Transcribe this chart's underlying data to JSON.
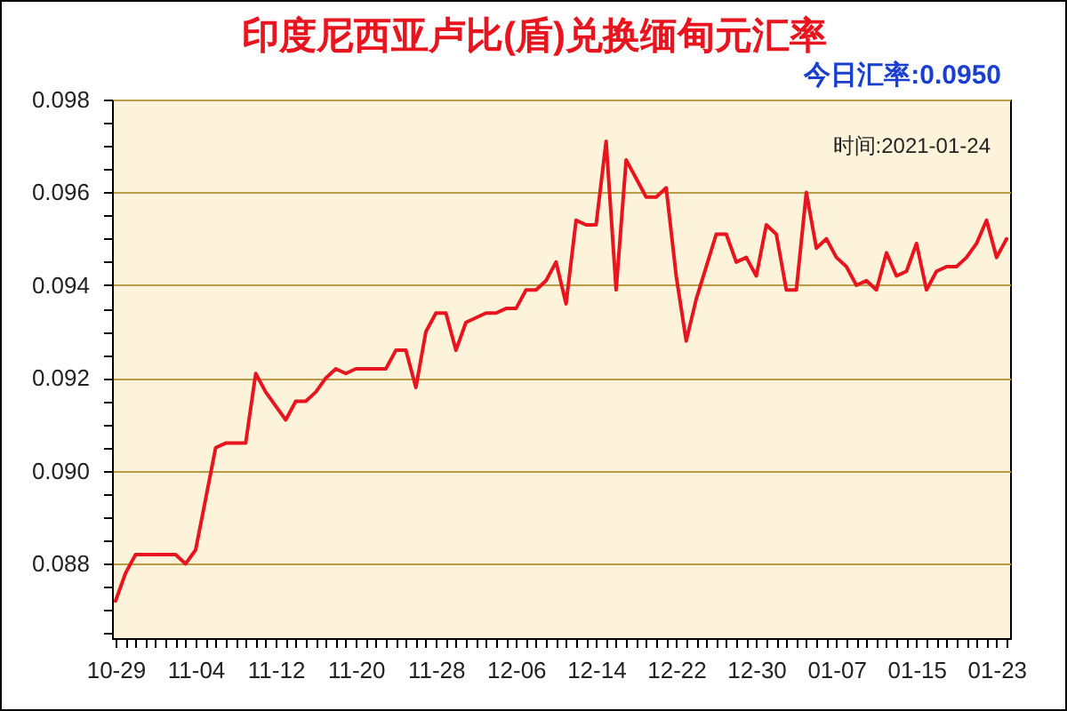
{
  "chart_data": {
    "type": "line",
    "title": "印度尼西亚卢比(盾)兑换缅甸元汇率",
    "annotations": [
      "今日汇率:0.0950",
      "时间:2021-01-24"
    ],
    "categories": [
      "10-29",
      null,
      null,
      null,
      null,
      null,
      null,
      null,
      "11-04",
      null,
      null,
      null,
      null,
      null,
      null,
      null,
      "11-12",
      null,
      null,
      null,
      null,
      null,
      null,
      null,
      "11-20",
      null,
      null,
      null,
      null,
      null,
      null,
      null,
      "11-28",
      null,
      null,
      null,
      null,
      null,
      null,
      null,
      "12-06",
      null,
      null,
      null,
      null,
      null,
      null,
      null,
      "12-14",
      null,
      null,
      null,
      null,
      null,
      null,
      null,
      "12-22",
      null,
      null,
      null,
      null,
      null,
      null,
      null,
      "12-30",
      null,
      null,
      null,
      null,
      null,
      null,
      null,
      "01-07",
      null,
      null,
      null,
      null,
      null,
      null,
      null,
      "01-15",
      null,
      null,
      null,
      null,
      null,
      null,
      null,
      "01-23",
      null
    ],
    "values": [
      0.0872,
      0.0878,
      0.0882,
      0.0882,
      0.0882,
      0.0882,
      0.0882,
      0.088,
      0.0883,
      0.0894,
      0.0905,
      0.0906,
      0.0906,
      0.0906,
      0.0921,
      0.0917,
      0.0914,
      0.0911,
      0.0915,
      0.0915,
      0.0917,
      0.092,
      0.0922,
      0.0921,
      0.0922,
      0.0922,
      0.0922,
      0.0922,
      0.0926,
      0.0926,
      0.0918,
      0.093,
      0.0934,
      0.0934,
      0.0926,
      0.0932,
      0.0933,
      0.0934,
      0.0934,
      0.0935,
      0.0935,
      0.0939,
      0.0939,
      0.0941,
      0.0945,
      0.0936,
      0.0954,
      0.0953,
      0.0953,
      0.0971,
      0.0939,
      0.0967,
      0.0963,
      0.0959,
      0.0959,
      0.0961,
      0.0942,
      0.0928,
      0.0937,
      0.0944,
      0.0951,
      0.0951,
      0.0945,
      0.0946,
      0.0942,
      0.0953,
      0.0951,
      0.0939,
      0.0939,
      0.096,
      0.0948,
      0.095,
      0.0946,
      0.0944,
      0.094,
      0.0941,
      0.0939,
      0.0947,
      0.0942,
      0.0943,
      0.0949,
      0.0939,
      0.0943,
      0.0944,
      0.0944,
      0.0946,
      0.0949,
      0.0954,
      0.0946,
      0.095
    ],
    "color": "#e8141e",
    "ylim": [
      0.0864,
      0.098
    ],
    "yticks": [
      {
        "value": 0.0865,
        "label": null
      },
      {
        "value": 0.087,
        "label": null
      },
      {
        "value": 0.0875,
        "label": null
      },
      0.088,
      {
        "value": 0.0885,
        "label": null
      },
      {
        "value": 0.089,
        "label": null
      },
      {
        "value": 0.0895,
        "label": null
      },
      {
        "value": 0.09,
        "label": "0.090"
      },
      {
        "value": 0.0905,
        "label": null
      },
      {
        "value": 0.091,
        "label": null
      },
      {
        "value": 0.0915,
        "label": null
      },
      0.092,
      {
        "value": 0.0925,
        "label": null
      },
      {
        "value": 0.093,
        "label": null
      },
      {
        "value": 0.0935,
        "label": null
      },
      0.094,
      {
        "value": 0.0945,
        "label": null
      },
      {
        "value": 0.095,
        "label": null
      },
      {
        "value": 0.0955,
        "label": null
      },
      0.096,
      {
        "value": 0.0965,
        "label": null
      },
      {
        "value": 0.097,
        "label": null
      },
      {
        "value": 0.0975,
        "label": null
      },
      0.098
    ],
    "grid": "y"
  }
}
